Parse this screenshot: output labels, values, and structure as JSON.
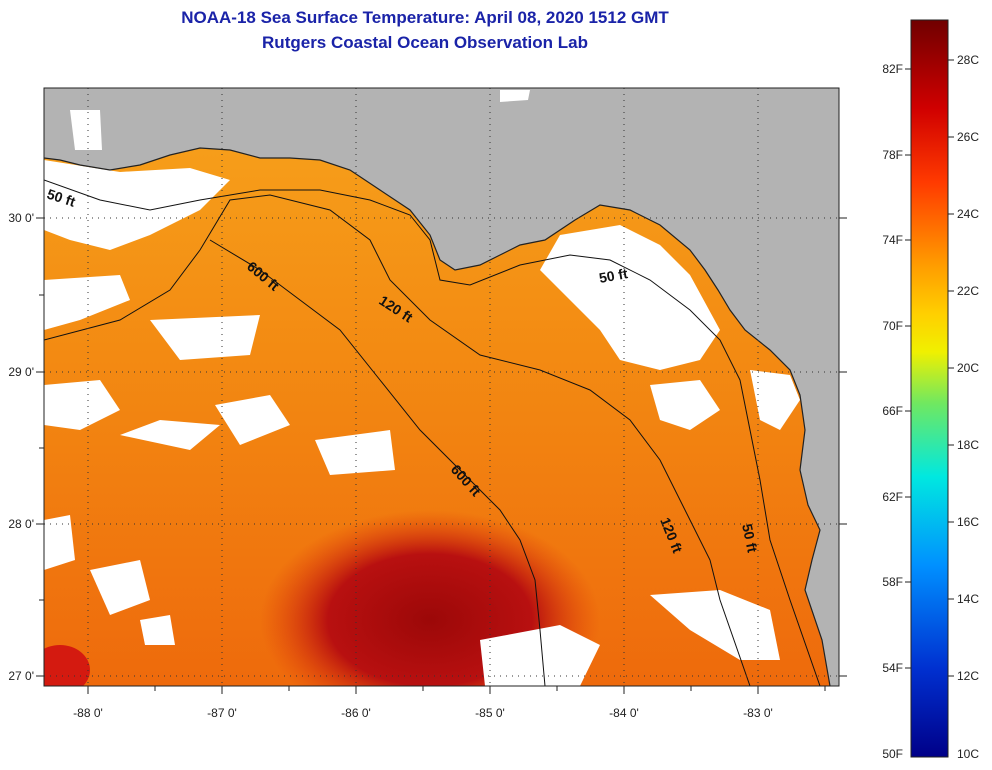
{
  "title": {
    "line1": "NOAA-18 Sea Surface Temperature:  April 08, 2020 1512 GMT",
    "line2": "Rutgers Coastal Ocean Observation Lab"
  },
  "map": {
    "lon_labels": [
      "-88 0'",
      "-87 0'",
      "-86 0'",
      "-85 0'",
      "-84 0'",
      "-83 0'"
    ],
    "lat_labels": [
      "30 0'",
      "29 0'",
      "28 0'",
      "27 0'"
    ],
    "contours": [
      {
        "label": "50 ft"
      },
      {
        "label": "120 ft"
      },
      {
        "label": "600 ft"
      },
      {
        "label": "600 ft"
      },
      {
        "label": "50 ft"
      },
      {
        "label": "120 ft"
      },
      {
        "label": "50 ft"
      }
    ],
    "colors": {
      "land": "#b3b3b3",
      "cloud": "#ffffff",
      "water_warm": "#f08a10",
      "water_hot": "#a80c0c"
    }
  },
  "colorbar": {
    "fahrenheit": [
      "82F",
      "78F",
      "74F",
      "70F",
      "66F",
      "62F",
      "58F",
      "54F",
      "50F"
    ],
    "celsius": [
      "28C",
      "26C",
      "24C",
      "22C",
      "20C",
      "18C",
      "16C",
      "14C",
      "12C",
      "10C"
    ],
    "colors": [
      "#7a0000",
      "#e00000",
      "#ff6a00",
      "#ffb000",
      "#f5f500",
      "#40e080",
      "#00e8f0",
      "#0090ff",
      "#0030c0",
      "#00008c"
    ]
  }
}
